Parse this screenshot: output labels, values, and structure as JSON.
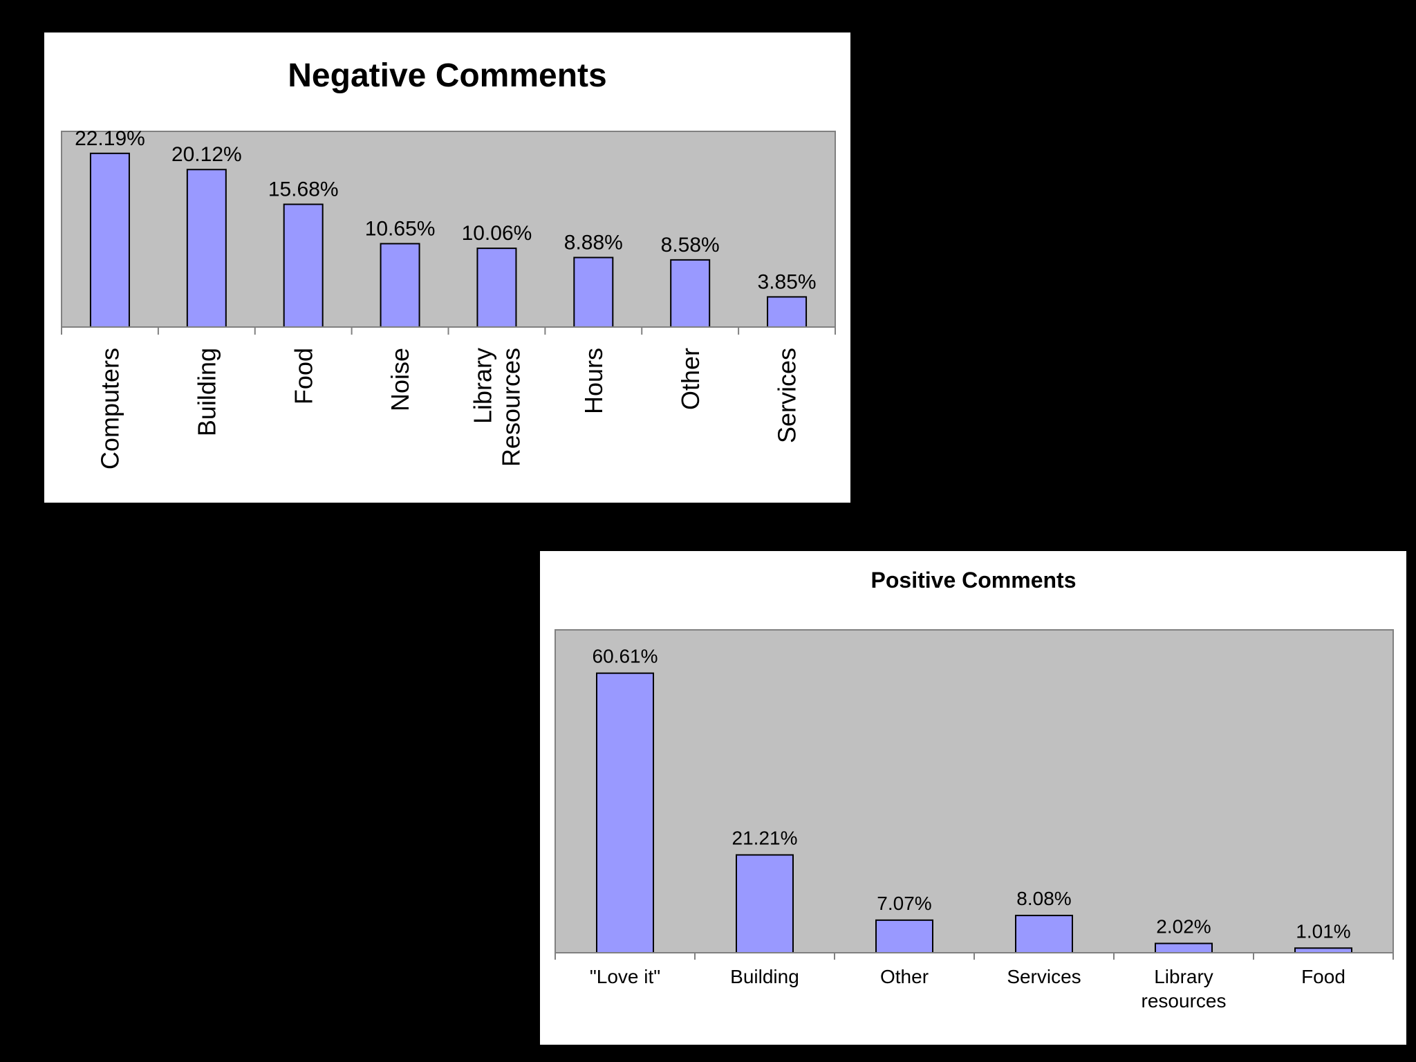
{
  "chart_data": [
    {
      "type": "bar",
      "title": "Negative Comments",
      "categories": [
        "Computers",
        "Building",
        "Food",
        "Noise",
        "Library Resources",
        "Hours",
        "Other",
        "Services"
      ],
      "values": [
        22.19,
        20.12,
        15.68,
        10.65,
        10.06,
        8.88,
        8.58,
        3.85
      ],
      "data_labels": [
        "22.19%",
        "20.12%",
        "15.68%",
        "10.65%",
        "10.06%",
        "8.88%",
        "8.58%",
        "3.85%"
      ],
      "xlabel": "",
      "ylabel": "",
      "ylim": [
        0,
        25
      ],
      "grid": false,
      "legend": "none",
      "tick_label_orientation": "vertical",
      "colors": {
        "bar": "#9999ff",
        "plot_area": "#c0c0c0"
      }
    },
    {
      "type": "bar",
      "title": "Positive Comments",
      "categories": [
        "\"Love it\"",
        "Building",
        "Other",
        "Services",
        "Library resources",
        "Food"
      ],
      "values": [
        60.61,
        21.21,
        7.07,
        8.08,
        2.02,
        1.01
      ],
      "data_labels": [
        "60.61%",
        "21.21%",
        "7.07%",
        "8.08%",
        "2.02%",
        "1.01%"
      ],
      "xlabel": "",
      "ylabel": "",
      "ylim": [
        0,
        70
      ],
      "grid": false,
      "legend": "none",
      "tick_label_orientation": "horizontal",
      "colors": {
        "bar": "#9999ff",
        "plot_area": "#c0c0c0"
      }
    }
  ]
}
